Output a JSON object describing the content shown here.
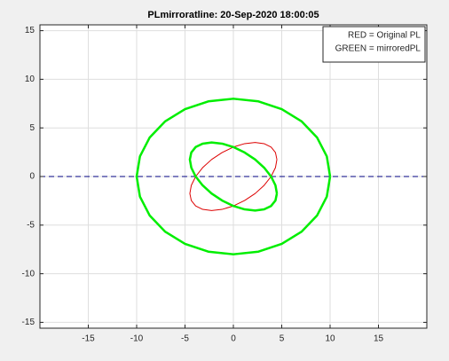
{
  "chart_data": {
    "type": "line",
    "title": "PLmirroratline: 20-Sep-2020 18:00:05",
    "legend_text": [
      "RED = Original PL",
      "GREEN = mirroredPL"
    ],
    "legend_position": "northeast",
    "grid": true,
    "xlim": [
      -20,
      20
    ],
    "ylim": [
      -15.6,
      15.6
    ],
    "xticks": [
      -15,
      -10,
      -5,
      0,
      5,
      10,
      15
    ],
    "yticks": [
      -15,
      -10,
      -5,
      0,
      5,
      10,
      15
    ],
    "series": [
      {
        "color": "#000080",
        "dashed": true,
        "line_width": 1,
        "x": [
          -20,
          20
        ],
        "values": [
          0,
          0
        ]
      },
      {
        "color": "#00ee00",
        "dashed": false,
        "line_width": 2.5,
        "x": [
          10,
          9.66,
          8.66,
          7.07,
          5,
          2.59,
          0,
          -2.59,
          -5,
          -7.07,
          -8.66,
          -9.66,
          -10,
          -9.66,
          -8.66,
          -7.07,
          -5,
          -2.59,
          0,
          2.59,
          5,
          7.07,
          8.66,
          9.66,
          10
        ],
        "values": [
          0,
          2.07,
          4,
          5.66,
          6.93,
          7.73,
          8,
          7.73,
          6.93,
          5.66,
          4,
          2.07,
          0,
          -2.07,
          -4,
          -5.66,
          -6.93,
          -7.73,
          -8,
          -7.73,
          -6.93,
          -5.66,
          -4,
          -2.07,
          0
        ]
      },
      {
        "color": "#dd0000",
        "dashed": false,
        "line_width": 1,
        "x": [
          4.5,
          4.35,
          3.9,
          3.18,
          2.25,
          1.16,
          0,
          -1.16,
          -2.25,
          -3.18,
          -3.9,
          -4.35,
          -4.5,
          -4.35,
          -3.9,
          -3.18,
          -2.25,
          -1.16,
          0,
          1.16,
          2.25,
          3.18,
          3.9,
          4.35,
          4.5
        ],
        "values": [
          1.75,
          2.47,
          3.03,
          3.38,
          3.5,
          3.38,
          3.03,
          2.47,
          1.75,
          0.91,
          0,
          -0.91,
          -1.75,
          -2.47,
          -3.03,
          -3.38,
          -3.5,
          -3.38,
          -3.03,
          -2.47,
          -1.75,
          -0.91,
          0,
          0.91,
          1.75
        ]
      },
      {
        "color": "#00ee00",
        "dashed": false,
        "line_width": 2.5,
        "x": [
          4.5,
          4.35,
          3.9,
          3.18,
          2.25,
          1.16,
          0,
          -1.16,
          -2.25,
          -3.18,
          -3.9,
          -4.35,
          -4.5,
          -4.35,
          -3.9,
          -3.18,
          -2.25,
          -1.16,
          0,
          1.16,
          2.25,
          3.18,
          3.9,
          4.35,
          4.5
        ],
        "values": [
          -1.75,
          -2.47,
          -3.03,
          -3.38,
          -3.5,
          -3.38,
          -3.03,
          -2.47,
          -1.75,
          -0.91,
          0,
          0.91,
          1.75,
          2.47,
          3.03,
          3.38,
          3.5,
          3.38,
          3.03,
          2.47,
          1.75,
          0.91,
          0,
          -0.91,
          -1.75
        ]
      }
    ]
  }
}
